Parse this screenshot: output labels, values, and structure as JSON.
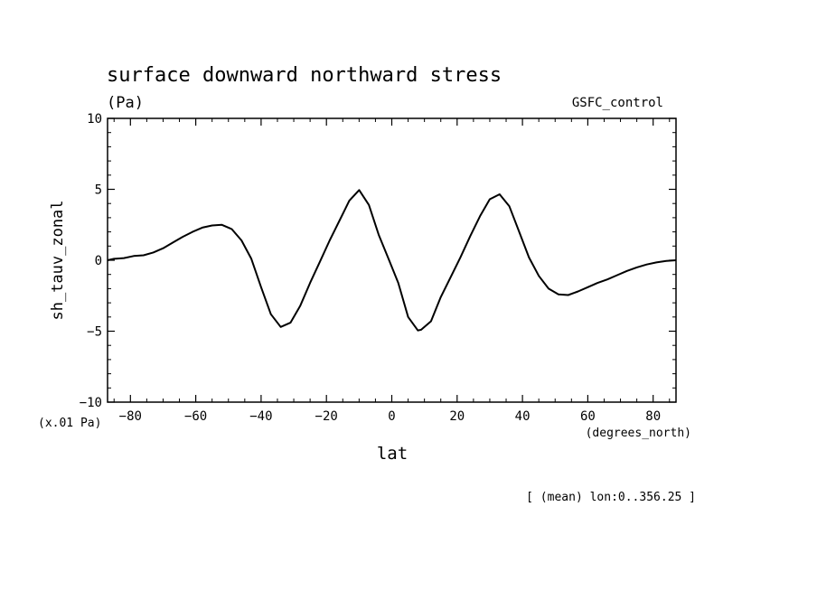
{
  "chart_data": {
    "type": "line",
    "title": "surface downward northward stress",
    "units": "(Pa)",
    "legend_label": "GSFC_control",
    "ylabel": "sh_tauv_zonal",
    "yscale_note": "(x.01 Pa)",
    "xlabel": "lat",
    "xunits": "(degrees_north)",
    "footnote": "[ (mean) lon:0..356.25 ]",
    "xlim": [
      -87,
      87
    ],
    "ylim": [
      -10,
      10
    ],
    "xticks": [
      -80,
      -60,
      -40,
      -20,
      0,
      20,
      40,
      60,
      80
    ],
    "xtick_labels": [
      "−80",
      "−60",
      "−40",
      "−20",
      "0",
      "20",
      "40",
      "60",
      "80"
    ],
    "yticks": [
      -10,
      -5,
      0,
      5,
      10
    ],
    "ytick_labels": [
      "−10",
      "−5",
      "0",
      "5",
      "10"
    ],
    "grid": false,
    "series": [
      {
        "color": "#000000",
        "x": [
          -87,
          -85,
          -82,
          -79,
          -76,
          -73,
          -70,
          -67,
          -64,
          -61,
          -58,
          -55,
          -52,
          -49,
          -46,
          -43,
          -40,
          -37,
          -34,
          -31,
          -28,
          -25,
          -22,
          -19,
          -16,
          -13,
          -10,
          -7,
          -4,
          -1,
          2,
          5,
          8,
          9,
          12,
          15,
          18,
          21,
          24,
          27,
          30,
          33,
          36,
          39,
          42,
          45,
          48,
          51,
          54,
          57,
          60,
          63,
          66,
          69,
          72,
          75,
          78,
          81,
          84,
          87
        ],
        "y": [
          0.0,
          0.1,
          0.15,
          0.3,
          0.35,
          0.55,
          0.85,
          1.25,
          1.65,
          2.0,
          2.3,
          2.45,
          2.5,
          2.2,
          1.4,
          0.1,
          -1.9,
          -3.8,
          -4.7,
          -4.4,
          -3.2,
          -1.6,
          -0.1,
          1.4,
          2.8,
          4.2,
          4.95,
          3.9,
          1.8,
          0.1,
          -1.6,
          -4.0,
          -4.95,
          -4.9,
          -4.3,
          -2.6,
          -1.2,
          0.2,
          1.7,
          3.1,
          4.3,
          4.65,
          3.8,
          2.0,
          0.2,
          -1.1,
          -2.0,
          -2.4,
          -2.45,
          -2.2,
          -1.9,
          -1.6,
          -1.35,
          -1.05,
          -0.75,
          -0.5,
          -0.3,
          -0.15,
          -0.05,
          0.0
        ]
      }
    ]
  }
}
